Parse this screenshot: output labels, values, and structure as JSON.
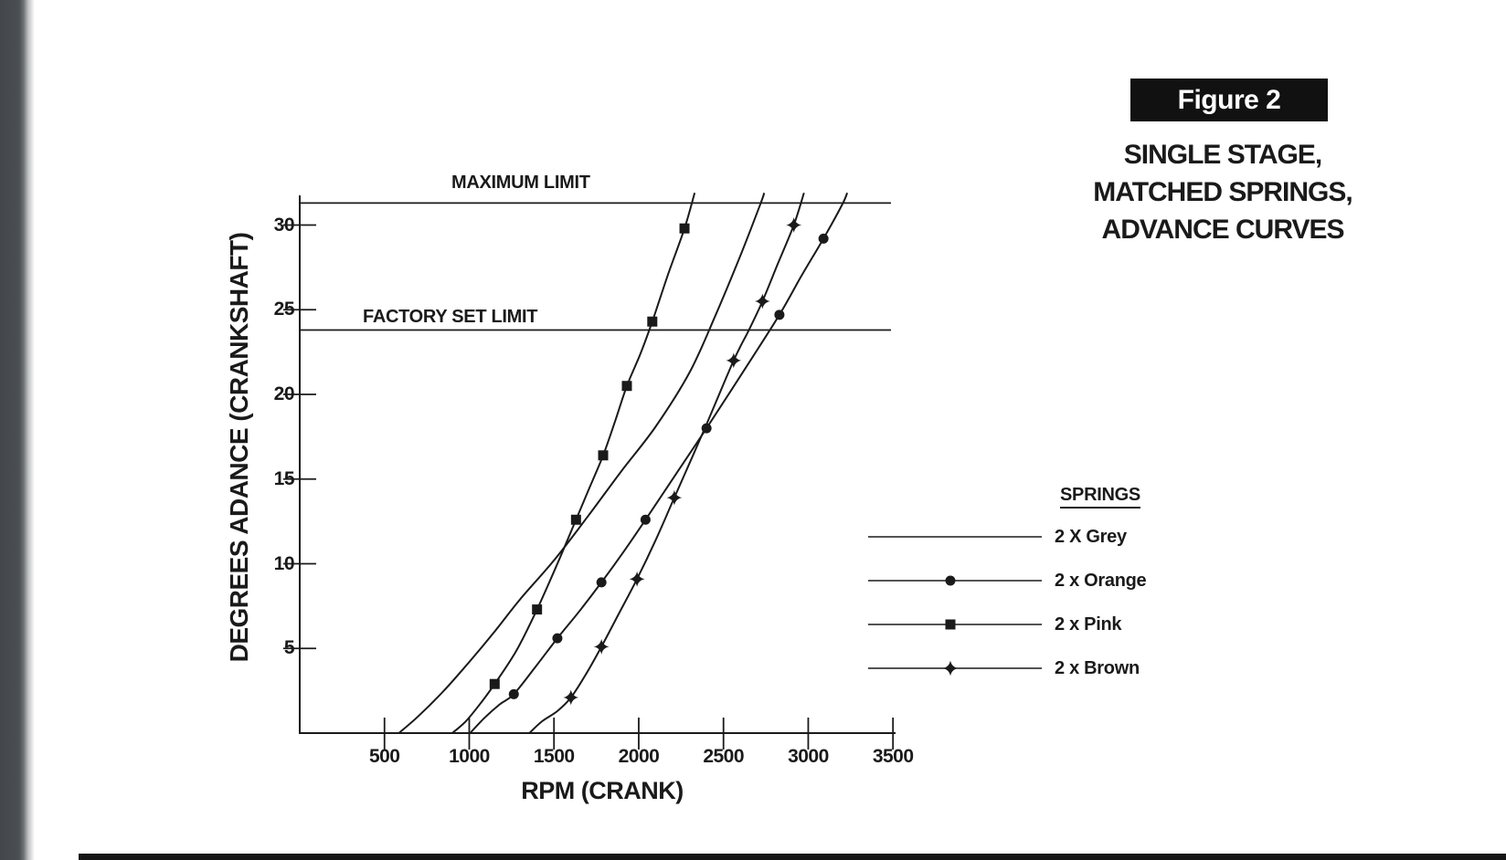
{
  "colors": {
    "ink": "#1a1a1a",
    "paper": "#ffffff",
    "edge_strip": "#4b4f54"
  },
  "figure": {
    "label": "Figure 2",
    "caption_lines": [
      "SINGLE STAGE,",
      "MATCHED SPRINGS,",
      "ADVANCE CURVES"
    ]
  },
  "chart_data": {
    "type": "line",
    "title": "SINGLE STAGE, MATCHED SPRINGS, ADVANCE CURVES",
    "xlabel": "RPM (CRANK)",
    "ylabel": "DEGREES ADANCE (CRANKSHAFT)",
    "xlim": [
      0,
      3700
    ],
    "ylim": [
      0,
      32
    ],
    "grid": false,
    "x_ticks": [
      500,
      1000,
      1500,
      2000,
      2500,
      3000,
      3500
    ],
    "y_ticks": [
      5,
      10,
      15,
      20,
      25,
      30
    ],
    "annotations": [
      {
        "label": "MAXIMUM LIMIT",
        "y_deg": 31.3
      },
      {
        "label": "FACTORY SET LIMIT",
        "y_deg": 23.8
      }
    ],
    "legend": {
      "title": "SPRINGS",
      "position": "right"
    },
    "series": [
      {
        "name": "2 X Grey",
        "marker": "none",
        "points": [
          [
            585,
            0
          ],
          [
            700,
            1.0
          ],
          [
            850,
            2.5
          ],
          [
            1000,
            4.2
          ],
          [
            1150,
            6.0
          ],
          [
            1300,
            7.9
          ],
          [
            1500,
            10.2
          ],
          [
            1700,
            12.8
          ],
          [
            1900,
            15.5
          ],
          [
            2100,
            18.1
          ],
          [
            2300,
            21.3
          ],
          [
            2450,
            24.6
          ],
          [
            2600,
            28.2
          ],
          [
            2720,
            31.3
          ],
          [
            2740,
            31.9
          ]
        ],
        "markers": []
      },
      {
        "name": "2 x Orange",
        "marker": "circle",
        "points": [
          [
            1005,
            0
          ],
          [
            1090,
            0.9
          ],
          [
            1180,
            1.7
          ],
          [
            1263,
            2.3
          ],
          [
            1390,
            3.9
          ],
          [
            1520,
            5.6
          ],
          [
            1650,
            7.2
          ],
          [
            1780,
            8.9
          ],
          [
            1910,
            10.7
          ],
          [
            2040,
            12.6
          ],
          [
            2220,
            15.3
          ],
          [
            2400,
            18.0
          ],
          [
            2620,
            21.4
          ],
          [
            2830,
            24.7
          ],
          [
            2960,
            27.0
          ],
          [
            3090,
            29.2
          ],
          [
            3200,
            31.2
          ],
          [
            3230,
            31.9
          ]
        ],
        "markers": [
          [
            1263,
            2.3
          ],
          [
            1520,
            5.6
          ],
          [
            1780,
            8.9
          ],
          [
            2040,
            12.6
          ],
          [
            2400,
            18.0
          ],
          [
            2830,
            24.7
          ],
          [
            3090,
            29.2
          ]
        ]
      },
      {
        "name": "2 x Pink",
        "marker": "square",
        "points": [
          [
            900,
            0
          ],
          [
            980,
            0.7
          ],
          [
            1070,
            1.8
          ],
          [
            1150,
            2.9
          ],
          [
            1280,
            4.9
          ],
          [
            1400,
            7.3
          ],
          [
            1520,
            10.0
          ],
          [
            1630,
            12.6
          ],
          [
            1710,
            14.5
          ],
          [
            1790,
            16.4
          ],
          [
            1860,
            18.4
          ],
          [
            1930,
            20.5
          ],
          [
            2010,
            22.4
          ],
          [
            2080,
            24.3
          ],
          [
            2170,
            27.0
          ],
          [
            2270,
            29.8
          ],
          [
            2330,
            31.9
          ]
        ],
        "markers": [
          [
            1150,
            2.9
          ],
          [
            1400,
            7.3
          ],
          [
            1630,
            12.6
          ],
          [
            1790,
            16.4
          ],
          [
            1930,
            20.5
          ],
          [
            2080,
            24.3
          ],
          [
            2270,
            29.8
          ]
        ]
      },
      {
        "name": "2 x Brown",
        "marker": "star4",
        "points": [
          [
            1355,
            0
          ],
          [
            1430,
            0.7
          ],
          [
            1520,
            1.3
          ],
          [
            1600,
            2.1
          ],
          [
            1690,
            3.5
          ],
          [
            1780,
            5.1
          ],
          [
            1880,
            7.0
          ],
          [
            1990,
            9.1
          ],
          [
            2100,
            11.4
          ],
          [
            2210,
            13.9
          ],
          [
            2390,
            18.0
          ],
          [
            2560,
            22.0
          ],
          [
            2650,
            23.8
          ],
          [
            2730,
            25.5
          ],
          [
            2820,
            27.7
          ],
          [
            2915,
            30.0
          ],
          [
            2975,
            31.9
          ]
        ],
        "markers": [
          [
            1600,
            2.1
          ],
          [
            1780,
            5.1
          ],
          [
            1990,
            9.1
          ],
          [
            2210,
            13.9
          ],
          [
            2560,
            22.0
          ],
          [
            2730,
            25.5
          ],
          [
            2915,
            30.0
          ]
        ]
      }
    ]
  }
}
